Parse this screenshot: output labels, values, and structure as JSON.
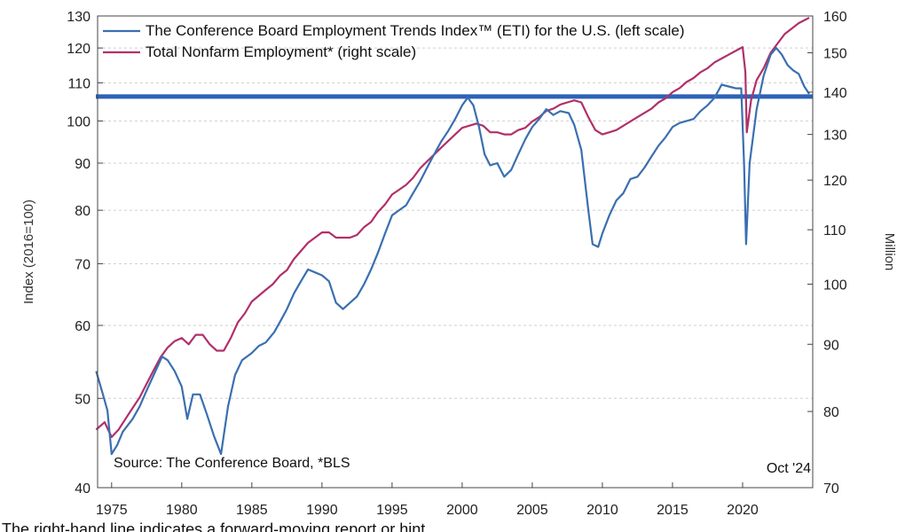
{
  "chart_data": {
    "type": "line",
    "title": "",
    "legend_position": "top-left",
    "grid": true,
    "x_range": [
      1974,
      2025
    ],
    "x_ticks": [
      "1975",
      "1980",
      "1985",
      "1990",
      "1995",
      "2000",
      "2005",
      "2010",
      "2015",
      "2020"
    ],
    "y_left": {
      "label": "Index (2016=100)",
      "scale": "log",
      "range": [
        40,
        130
      ],
      "ticks": [
        "40",
        "50",
        "60",
        "70",
        "80",
        "90",
        "100",
        "110",
        "120",
        "130"
      ]
    },
    "y_right": {
      "label": "Million",
      "scale": "log",
      "range": [
        70,
        160
      ],
      "ticks": [
        "70",
        "80",
        "90",
        "100",
        "110",
        "120",
        "130",
        "140",
        "150",
        "160"
      ]
    },
    "reference_line": {
      "axis": "left",
      "value": 106.3,
      "color": "#2e62b8"
    },
    "annotations": {
      "source": "Source: The Conference Board, *BLS",
      "date": "Oct '24"
    },
    "series": [
      {
        "name": "The Conference Board Employment Trends Index™ (ETI) for the U.S. (left scale)",
        "axis": "left",
        "color": "#3a6fb0",
        "points": [
          [
            1973.9,
            53.5
          ],
          [
            1974.3,
            51
          ],
          [
            1974.7,
            48.5
          ],
          [
            1975.0,
            43.5
          ],
          [
            1975.4,
            44.5
          ],
          [
            1975.8,
            46
          ],
          [
            1976.5,
            47.5
          ],
          [
            1977.0,
            49
          ],
          [
            1977.5,
            51
          ],
          [
            1978.0,
            53
          ],
          [
            1978.6,
            55.5
          ],
          [
            1979.0,
            55
          ],
          [
            1979.5,
            53.5
          ],
          [
            1980.0,
            51.5
          ],
          [
            1980.4,
            47.5
          ],
          [
            1980.8,
            50.5
          ],
          [
            1981.3,
            50.5
          ],
          [
            1981.8,
            48
          ],
          [
            1982.3,
            45.5
          ],
          [
            1982.8,
            43.5
          ],
          [
            1983.3,
            49
          ],
          [
            1983.8,
            53
          ],
          [
            1984.3,
            55
          ],
          [
            1985.0,
            56
          ],
          [
            1985.5,
            57
          ],
          [
            1986.0,
            57.5
          ],
          [
            1986.6,
            59
          ],
          [
            1987.0,
            60.5
          ],
          [
            1987.5,
            62.5
          ],
          [
            1988.0,
            65
          ],
          [
            1988.5,
            67
          ],
          [
            1989.0,
            69
          ],
          [
            1989.5,
            68.5
          ],
          [
            1990.0,
            68
          ],
          [
            1990.5,
            67
          ],
          [
            1991.0,
            63.5
          ],
          [
            1991.5,
            62.5
          ],
          [
            1992.0,
            63.5
          ],
          [
            1992.5,
            64.5
          ],
          [
            1993.0,
            66.5
          ],
          [
            1993.5,
            69
          ],
          [
            1994.0,
            72
          ],
          [
            1994.5,
            75.5
          ],
          [
            1995.0,
            79
          ],
          [
            1995.5,
            80
          ],
          [
            1996.0,
            81
          ],
          [
            1996.5,
            83.5
          ],
          [
            1997.0,
            86
          ],
          [
            1997.5,
            89
          ],
          [
            1998.0,
            92
          ],
          [
            1998.5,
            95
          ],
          [
            1999.0,
            97.5
          ],
          [
            1999.5,
            100.5
          ],
          [
            2000.0,
            104
          ],
          [
            2000.4,
            106
          ],
          [
            2000.8,
            104
          ],
          [
            2001.2,
            98.5
          ],
          [
            2001.6,
            92
          ],
          [
            2002.0,
            89.5
          ],
          [
            2002.5,
            90
          ],
          [
            2003.0,
            87
          ],
          [
            2003.5,
            88.5
          ],
          [
            2004.0,
            92
          ],
          [
            2004.5,
            95.5
          ],
          [
            2005.0,
            98.5
          ],
          [
            2005.5,
            100.5
          ],
          [
            2006.0,
            103
          ],
          [
            2006.5,
            101.5
          ],
          [
            2007.0,
            102.5
          ],
          [
            2007.6,
            102
          ],
          [
            2008.0,
            99
          ],
          [
            2008.5,
            93
          ],
          [
            2009.0,
            80
          ],
          [
            2009.3,
            73.5
          ],
          [
            2009.7,
            73
          ],
          [
            2010.0,
            75.5
          ],
          [
            2010.5,
            79
          ],
          [
            2011.0,
            82
          ],
          [
            2011.5,
            83.5
          ],
          [
            2012.0,
            86.5
          ],
          [
            2012.5,
            87
          ],
          [
            2013.0,
            89
          ],
          [
            2013.5,
            91.5
          ],
          [
            2014.0,
            94
          ],
          [
            2014.5,
            96
          ],
          [
            2015.0,
            98.5
          ],
          [
            2015.5,
            99.5
          ],
          [
            2016.0,
            100
          ],
          [
            2016.5,
            100.5
          ],
          [
            2017.0,
            102.5
          ],
          [
            2017.5,
            104
          ],
          [
            2018.0,
            106
          ],
          [
            2018.5,
            109.5
          ],
          [
            2019.0,
            109
          ],
          [
            2019.5,
            108.5
          ],
          [
            2019.9,
            108.5
          ],
          [
            2020.1,
            90
          ],
          [
            2020.25,
            73.5
          ],
          [
            2020.5,
            90
          ],
          [
            2021.0,
            103
          ],
          [
            2021.5,
            112
          ],
          [
            2022.0,
            118
          ],
          [
            2022.4,
            120
          ],
          [
            2022.8,
            118
          ],
          [
            2023.2,
            115
          ],
          [
            2023.6,
            113.5
          ],
          [
            2024.0,
            112.5
          ],
          [
            2024.4,
            109
          ],
          [
            2024.75,
            107
          ]
        ]
      },
      {
        "name": "Total Nonfarm Employment* (right scale)",
        "axis": "right",
        "color": "#b0306a",
        "points": [
          [
            1973.9,
            77.5
          ],
          [
            1974.5,
            78.5
          ],
          [
            1975.0,
            76.5
          ],
          [
            1975.5,
            77.5
          ],
          [
            1976.0,
            79
          ],
          [
            1976.5,
            80.5
          ],
          [
            1977.0,
            82
          ],
          [
            1977.5,
            84
          ],
          [
            1978.0,
            86
          ],
          [
            1978.5,
            88
          ],
          [
            1979.0,
            89.5
          ],
          [
            1979.5,
            90.5
          ],
          [
            1980.0,
            91
          ],
          [
            1980.5,
            90
          ],
          [
            1981.0,
            91.5
          ],
          [
            1981.5,
            91.5
          ],
          [
            1982.0,
            90
          ],
          [
            1982.5,
            89
          ],
          [
            1983.0,
            89
          ],
          [
            1983.5,
            91
          ],
          [
            1984.0,
            93.5
          ],
          [
            1984.5,
            95
          ],
          [
            1985.0,
            97
          ],
          [
            1985.5,
            98
          ],
          [
            1986.0,
            99
          ],
          [
            1986.5,
            100
          ],
          [
            1987.0,
            101.5
          ],
          [
            1987.5,
            102.5
          ],
          [
            1988.0,
            104.5
          ],
          [
            1988.5,
            106
          ],
          [
            1989.0,
            107.5
          ],
          [
            1989.5,
            108.5
          ],
          [
            1990.0,
            109.5
          ],
          [
            1990.5,
            109.5
          ],
          [
            1991.0,
            108.5
          ],
          [
            1991.5,
            108.5
          ],
          [
            1992.0,
            108.5
          ],
          [
            1992.5,
            109
          ],
          [
            1993.0,
            110.5
          ],
          [
            1993.5,
            111.5
          ],
          [
            1994.0,
            113.5
          ],
          [
            1994.5,
            115
          ],
          [
            1995.0,
            117
          ],
          [
            1995.5,
            118
          ],
          [
            1996.0,
            119
          ],
          [
            1996.5,
            120.5
          ],
          [
            1997.0,
            122.5
          ],
          [
            1997.5,
            124
          ],
          [
            1998.0,
            125.5
          ],
          [
            1998.5,
            127
          ],
          [
            1999.0,
            128.5
          ],
          [
            1999.5,
            130
          ],
          [
            2000.0,
            131.5
          ],
          [
            2000.5,
            132
          ],
          [
            2001.0,
            132.5
          ],
          [
            2001.5,
            132
          ],
          [
            2002.0,
            130.5
          ],
          [
            2002.5,
            130.5
          ],
          [
            2003.0,
            130
          ],
          [
            2003.5,
            130
          ],
          [
            2004.0,
            131
          ],
          [
            2004.5,
            131.5
          ],
          [
            2005.0,
            133
          ],
          [
            2005.5,
            134
          ],
          [
            2006.0,
            135.5
          ],
          [
            2006.5,
            136
          ],
          [
            2007.0,
            137
          ],
          [
            2007.5,
            137.5
          ],
          [
            2008.0,
            138
          ],
          [
            2008.5,
            137.5
          ],
          [
            2009.0,
            134
          ],
          [
            2009.5,
            131
          ],
          [
            2010.0,
            130
          ],
          [
            2010.5,
            130.5
          ],
          [
            2011.0,
            131
          ],
          [
            2011.5,
            132
          ],
          [
            2012.0,
            133
          ],
          [
            2012.5,
            134
          ],
          [
            2013.0,
            135
          ],
          [
            2013.5,
            136
          ],
          [
            2014.0,
            137.5
          ],
          [
            2014.5,
            138.5
          ],
          [
            2015.0,
            140
          ],
          [
            2015.5,
            141
          ],
          [
            2016.0,
            142.5
          ],
          [
            2016.5,
            143.5
          ],
          [
            2017.0,
            145
          ],
          [
            2017.5,
            146
          ],
          [
            2018.0,
            147.5
          ],
          [
            2018.5,
            148.5
          ],
          [
            2019.0,
            149.5
          ],
          [
            2019.5,
            150.5
          ],
          [
            2020.0,
            151.5
          ],
          [
            2020.2,
            145
          ],
          [
            2020.3,
            130.5
          ],
          [
            2020.6,
            138
          ],
          [
            2021.0,
            143
          ],
          [
            2021.5,
            146
          ],
          [
            2022.0,
            150
          ],
          [
            2022.5,
            152.5
          ],
          [
            2023.0,
            155
          ],
          [
            2023.5,
            156.5
          ],
          [
            2024.0,
            158
          ],
          [
            2024.5,
            159
          ],
          [
            2024.75,
            159.5
          ]
        ]
      }
    ]
  },
  "caption": "The right-hand line indicates a forward-moving report or hint."
}
